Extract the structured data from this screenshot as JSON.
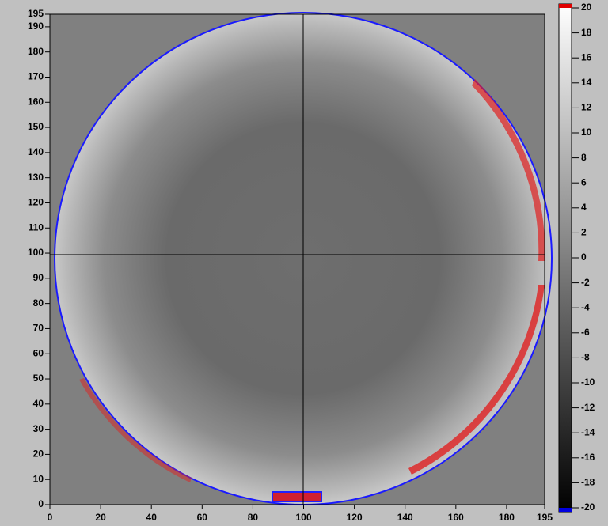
{
  "chart_data": {
    "type": "heatmap",
    "xlim": [
      0,
      195
    ],
    "ylim": [
      0,
      195
    ],
    "xticks": [
      0,
      20,
      40,
      60,
      80,
      100,
      120,
      140,
      160,
      180,
      195
    ],
    "yticks": [
      0,
      10,
      20,
      30,
      40,
      50,
      60,
      70,
      80,
      90,
      100,
      110,
      120,
      130,
      140,
      150,
      160,
      170,
      180,
      190,
      195
    ],
    "clim": [
      -20,
      20
    ],
    "cticks": [
      20,
      18,
      16,
      14,
      12,
      10,
      8,
      6,
      4,
      2,
      0,
      -2,
      -4,
      -6,
      -8,
      -10,
      -12,
      -14,
      -16,
      -18,
      -20
    ]
  }
}
